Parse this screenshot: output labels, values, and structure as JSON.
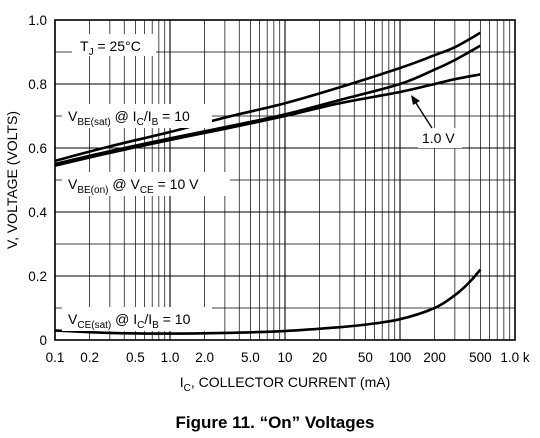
{
  "chart_data": {
    "type": "line",
    "caption": "Figure 11. “On” Voltages",
    "xlabel_main": "I",
    "xlabel_sub": "C",
    "xlabel_rest": ", COLLECTOR CURRENT (mA)",
    "ylabel": "V, VOLTAGE (VOLTS)",
    "x_scale": "log",
    "xlim": [
      0.1,
      1000
    ],
    "ylim": [
      0,
      1.0
    ],
    "grid": true,
    "x_ticks": [
      0.1,
      0.2,
      0.5,
      1.0,
      2.0,
      5.0,
      10,
      20,
      50,
      100,
      200,
      500,
      1000
    ],
    "x_tick_labels": [
      "0.1",
      "0.2",
      "0.5",
      "1.0",
      "2.0",
      "5.0",
      "10",
      "20",
      "50",
      "100",
      "200",
      "500",
      "1.0 k"
    ],
    "y_ticks": [
      0,
      0.2,
      0.4,
      0.6,
      0.8,
      1.0
    ],
    "y_tick_labels": [
      "0",
      "0.2",
      "0.4",
      "0.6",
      "0.8",
      "1.0"
    ],
    "annotations": {
      "temp": {
        "main": "T",
        "sub": "J",
        "rest": " = 25°C"
      },
      "vbe_sat": {
        "main": "V",
        "sub": "BE(sat)",
        "mid": " @ I",
        "sub2": "C",
        "mid2": "/I",
        "sub3": "B",
        "rest": " = 10"
      },
      "vbe_on": {
        "main": "V",
        "sub": "BE(on)",
        "mid": " @ V",
        "sub2": "CE",
        "rest": " = 10 V"
      },
      "vce_sat": {
        "main": "V",
        "sub": "CE(sat)",
        "mid": " @ I",
        "sub2": "C",
        "mid2": "/I",
        "sub3": "B",
        "rest": " = 10"
      },
      "one_volt": "1.0 V"
    },
    "series": [
      {
        "x": [
          0.1,
          0.3,
          1,
          3,
          10,
          30,
          100,
          200,
          300,
          500
        ],
        "y": [
          0.56,
          0.605,
          0.65,
          0.695,
          0.74,
          0.79,
          0.85,
          0.89,
          0.915,
          0.96
        ]
      },
      {
        "x": [
          0.1,
          0.3,
          1,
          3,
          10,
          30,
          100,
          200,
          300,
          500
        ],
        "y": [
          0.55,
          0.59,
          0.63,
          0.665,
          0.705,
          0.75,
          0.8,
          0.845,
          0.875,
          0.92
        ]
      },
      {
        "x": [
          0.1,
          0.3,
          1,
          3,
          10,
          30,
          100,
          200,
          300,
          500
        ],
        "y": [
          0.545,
          0.585,
          0.625,
          0.66,
          0.7,
          0.74,
          0.775,
          0.8,
          0.815,
          0.83
        ]
      },
      {
        "x": [
          0.1,
          0.3,
          1,
          3,
          10,
          30,
          50,
          100,
          200,
          300,
          400,
          500
        ],
        "y": [
          0.03,
          0.022,
          0.02,
          0.022,
          0.028,
          0.04,
          0.048,
          0.065,
          0.1,
          0.14,
          0.18,
          0.22
        ]
      }
    ]
  }
}
